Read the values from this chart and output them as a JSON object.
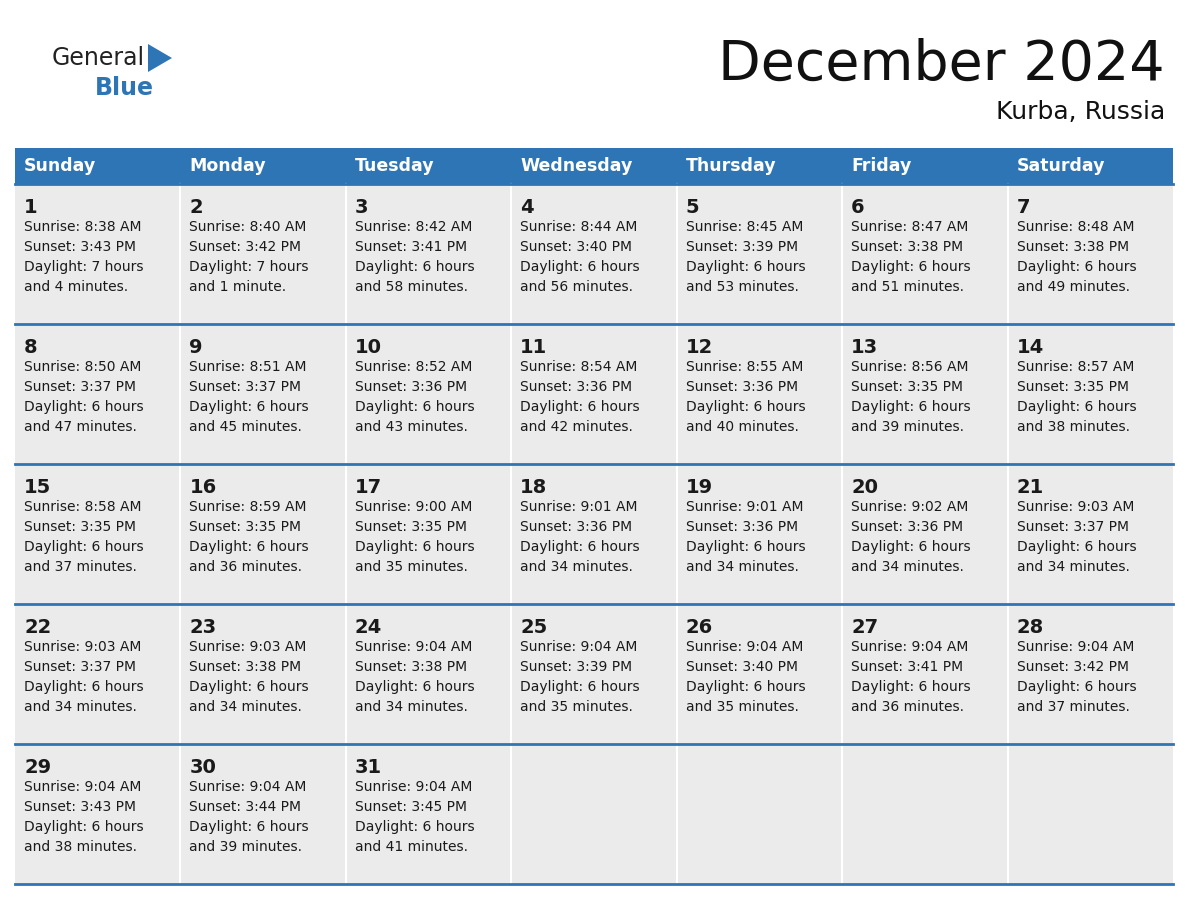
{
  "title": "December 2024",
  "subtitle": "Kurba, Russia",
  "header_color": "#2E75B6",
  "header_text_color": "#FFFFFF",
  "cell_bg_color": "#EBEBEB",
  "separator_color": "#2E75B6",
  "text_color": "#1a1a1a",
  "day_headers": [
    "Sunday",
    "Monday",
    "Tuesday",
    "Wednesday",
    "Thursday",
    "Friday",
    "Saturday"
  ],
  "logo_color": "#2E75B6",
  "weeks": [
    [
      {
        "day": 1,
        "sunrise": "8:38 AM",
        "sunset": "3:43 PM",
        "daylight": "7 hours and 4 minutes."
      },
      {
        "day": 2,
        "sunrise": "8:40 AM",
        "sunset": "3:42 PM",
        "daylight": "7 hours and 1 minute."
      },
      {
        "day": 3,
        "sunrise": "8:42 AM",
        "sunset": "3:41 PM",
        "daylight": "6 hours and 58 minutes."
      },
      {
        "day": 4,
        "sunrise": "8:44 AM",
        "sunset": "3:40 PM",
        "daylight": "6 hours and 56 minutes."
      },
      {
        "day": 5,
        "sunrise": "8:45 AM",
        "sunset": "3:39 PM",
        "daylight": "6 hours and 53 minutes."
      },
      {
        "day": 6,
        "sunrise": "8:47 AM",
        "sunset": "3:38 PM",
        "daylight": "6 hours and 51 minutes."
      },
      {
        "day": 7,
        "sunrise": "8:48 AM",
        "sunset": "3:38 PM",
        "daylight": "6 hours and 49 minutes."
      }
    ],
    [
      {
        "day": 8,
        "sunrise": "8:50 AM",
        "sunset": "3:37 PM",
        "daylight": "6 hours and 47 minutes."
      },
      {
        "day": 9,
        "sunrise": "8:51 AM",
        "sunset": "3:37 PM",
        "daylight": "6 hours and 45 minutes."
      },
      {
        "day": 10,
        "sunrise": "8:52 AM",
        "sunset": "3:36 PM",
        "daylight": "6 hours and 43 minutes."
      },
      {
        "day": 11,
        "sunrise": "8:54 AM",
        "sunset": "3:36 PM",
        "daylight": "6 hours and 42 minutes."
      },
      {
        "day": 12,
        "sunrise": "8:55 AM",
        "sunset": "3:36 PM",
        "daylight": "6 hours and 40 minutes."
      },
      {
        "day": 13,
        "sunrise": "8:56 AM",
        "sunset": "3:35 PM",
        "daylight": "6 hours and 39 minutes."
      },
      {
        "day": 14,
        "sunrise": "8:57 AM",
        "sunset": "3:35 PM",
        "daylight": "6 hours and 38 minutes."
      }
    ],
    [
      {
        "day": 15,
        "sunrise": "8:58 AM",
        "sunset": "3:35 PM",
        "daylight": "6 hours and 37 minutes."
      },
      {
        "day": 16,
        "sunrise": "8:59 AM",
        "sunset": "3:35 PM",
        "daylight": "6 hours and 36 minutes."
      },
      {
        "day": 17,
        "sunrise": "9:00 AM",
        "sunset": "3:35 PM",
        "daylight": "6 hours and 35 minutes."
      },
      {
        "day": 18,
        "sunrise": "9:01 AM",
        "sunset": "3:36 PM",
        "daylight": "6 hours and 34 minutes."
      },
      {
        "day": 19,
        "sunrise": "9:01 AM",
        "sunset": "3:36 PM",
        "daylight": "6 hours and 34 minutes."
      },
      {
        "day": 20,
        "sunrise": "9:02 AM",
        "sunset": "3:36 PM",
        "daylight": "6 hours and 34 minutes."
      },
      {
        "day": 21,
        "sunrise": "9:03 AM",
        "sunset": "3:37 PM",
        "daylight": "6 hours and 34 minutes."
      }
    ],
    [
      {
        "day": 22,
        "sunrise": "9:03 AM",
        "sunset": "3:37 PM",
        "daylight": "6 hours and 34 minutes."
      },
      {
        "day": 23,
        "sunrise": "9:03 AM",
        "sunset": "3:38 PM",
        "daylight": "6 hours and 34 minutes."
      },
      {
        "day": 24,
        "sunrise": "9:04 AM",
        "sunset": "3:38 PM",
        "daylight": "6 hours and 34 minutes."
      },
      {
        "day": 25,
        "sunrise": "9:04 AM",
        "sunset": "3:39 PM",
        "daylight": "6 hours and 35 minutes."
      },
      {
        "day": 26,
        "sunrise": "9:04 AM",
        "sunset": "3:40 PM",
        "daylight": "6 hours and 35 minutes."
      },
      {
        "day": 27,
        "sunrise": "9:04 AM",
        "sunset": "3:41 PM",
        "daylight": "6 hours and 36 minutes."
      },
      {
        "day": 28,
        "sunrise": "9:04 AM",
        "sunset": "3:42 PM",
        "daylight": "6 hours and 37 minutes."
      }
    ],
    [
      {
        "day": 29,
        "sunrise": "9:04 AM",
        "sunset": "3:43 PM",
        "daylight": "6 hours and 38 minutes."
      },
      {
        "day": 30,
        "sunrise": "9:04 AM",
        "sunset": "3:44 PM",
        "daylight": "6 hours and 39 minutes."
      },
      {
        "day": 31,
        "sunrise": "9:04 AM",
        "sunset": "3:45 PM",
        "daylight": "6 hours and 41 minutes."
      },
      null,
      null,
      null,
      null
    ]
  ]
}
